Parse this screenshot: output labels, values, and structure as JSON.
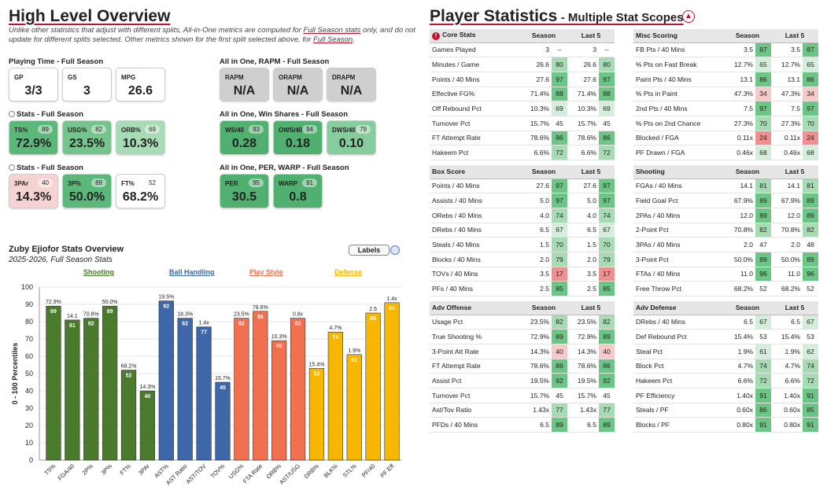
{
  "left": {
    "title": "High Level Overview",
    "note_parts": [
      "Unlike other statistics that adjust with different splits, All-in-One metrics are computed for ",
      "Full Season stats",
      " only, and do not update for different splits selected. Other metrics shown for the first split selected above, for ",
      "Full Season",
      "."
    ],
    "playing_time": {
      "title": "Playing Time - Full Season",
      "cards": [
        {
          "label": "GP",
          "value": "3/3"
        },
        {
          "label": "GS",
          "value": "3"
        },
        {
          "label": "MPG",
          "value": "26.6"
        }
      ]
    },
    "stats1": {
      "title": "Stats - Full Season",
      "cards": [
        {
          "label": "TS%",
          "value": "72.9%",
          "pct": "89",
          "color": "#5cb87a"
        },
        {
          "label": "USG%",
          "value": "23.5%",
          "pct": "82",
          "color": "#74c48c"
        },
        {
          "label": "ORB%",
          "value": "10.3%",
          "pct": "69",
          "color": "#a8dcb6"
        }
      ]
    },
    "stats2": {
      "title": "Stats - Full Season",
      "cards": [
        {
          "label": "3PAr",
          "value": "14.3%",
          "pct": "40",
          "color": "#f6d3d3"
        },
        {
          "label": "3P%",
          "value": "50.0%",
          "pct": "89",
          "color": "#5cb87a"
        },
        {
          "label": "FT%",
          "value": "68.2%",
          "pct": "52",
          "color": "#ffffff"
        }
      ]
    },
    "rapm": {
      "title": "All in One, RAPM - Full Season",
      "cards": [
        {
          "label": "RAPM",
          "value": "N/A"
        },
        {
          "label": "ORAPM",
          "value": "N/A"
        },
        {
          "label": "DRAPM",
          "value": "N/A"
        }
      ]
    },
    "ws": {
      "title": "All in One, Win Shares - Full Season",
      "cards": [
        {
          "label": "WS/40",
          "value": "0.28",
          "pct": "93",
          "color": "#4fb06f"
        },
        {
          "label": "OWS/40",
          "value": "0.18",
          "pct": "94",
          "color": "#4fb06f"
        },
        {
          "label": "DWS/40",
          "value": "0.10",
          "pct": "79",
          "color": "#86cc9c"
        }
      ]
    },
    "per": {
      "title": "All in One, PER, WARP - Full Season",
      "cards": [
        {
          "label": "PER",
          "value": "30.5",
          "pct": "95",
          "color": "#4fb06f"
        },
        {
          "label": "WARP",
          "value": "0.8",
          "pct": "91",
          "color": "#4fb06f"
        }
      ]
    }
  },
  "chart": {
    "title": "Zuby Ejiofor Stats Overview",
    "subtitle": "2025-2026, Full Season Stats",
    "labels_toggle": "Labels",
    "groups": [
      {
        "name": "Shooting",
        "color": "#4a7a2c"
      },
      {
        "name": "Ball Handling",
        "color": "#3d67a8"
      },
      {
        "name": "Play Style",
        "color": "#f07050"
      },
      {
        "name": "Defense",
        "color": "#f7b600"
      }
    ]
  },
  "chart_data": {
    "type": "bar",
    "ylabel": "0 - 100 Percentiles",
    "ylim": [
      0,
      100
    ],
    "yticks": [
      0,
      10,
      20,
      30,
      40,
      50,
      60,
      70,
      80,
      90,
      100
    ],
    "categories": [
      "TS%",
      "FGA/40",
      "2P%",
      "3P%",
      "FT%",
      "3PAr",
      "AST%",
      "AST Ratio",
      "AST/TOV",
      "TOV%",
      "USG%",
      "FTA Rate",
      "ORB%",
      "AST/USG",
      "DRB%",
      "BLK%",
      "STL%",
      "PF/40",
      "PF Eff"
    ],
    "values": [
      89,
      81,
      82,
      89,
      52,
      40,
      92,
      82,
      77,
      45,
      82,
      86,
      69,
      82,
      53,
      74,
      61,
      85,
      91
    ],
    "stat_labels": [
      "72.9%",
      "14.1",
      "70.8%",
      "50.0%",
      "68.2%",
      "14.3%",
      "19.5%",
      "18.3%",
      "1.4x",
      "15.7%",
      "23.5%",
      "78.6%",
      "10.3%",
      "0.8x",
      "15.4%",
      "4.7%",
      "1.9%",
      "2.5",
      "1.4x"
    ],
    "group_index": [
      0,
      0,
      0,
      0,
      0,
      0,
      1,
      1,
      1,
      1,
      2,
      2,
      2,
      2,
      3,
      3,
      3,
      3,
      3
    ]
  },
  "right": {
    "title": "Player Statistics",
    "subtitle": "- Multiple Stat Scopes",
    "tables": [
      {
        "title": "Core Stats",
        "icon": true,
        "h1": "Season",
        "h2": "Last 5",
        "rows": [
          [
            "Games Played",
            "3",
            "--",
            "3",
            "--"
          ],
          [
            "Minutes / Game",
            "26.6",
            "80",
            "26.6",
            "80"
          ],
          [
            "Points / 40 Mins",
            "27.6",
            "97",
            "27.6",
            "97"
          ],
          [
            "Effective FG%",
            "71.4%",
            "88",
            "71.4%",
            "88"
          ],
          [
            "Off Rebound Pct",
            "10.3%",
            "69",
            "10.3%",
            "69"
          ],
          [
            "Turnover Pct",
            "15.7%",
            "45",
            "15.7%",
            "45"
          ],
          [
            "FT Attempt Rate",
            "78.6%",
            "86",
            "78.6%",
            "86"
          ],
          [
            "Hakeem Pct",
            "6.6%",
            "72",
            "6.6%",
            "72"
          ]
        ]
      },
      {
        "title": "Misc Scoring",
        "h1": "Season",
        "h2": "Last 5",
        "rows": [
          [
            "FB Pts / 40 Mins",
            "3.5",
            "87",
            "3.5",
            "87"
          ],
          [
            "% Pts on Fast Break",
            "12.7%",
            "65",
            "12.7%",
            "65"
          ],
          [
            "Paint Pts / 40 Mins",
            "13.1",
            "86",
            "13.1",
            "86"
          ],
          [
            "% Pts in Paint",
            "47.3%",
            "34",
            "47.3%",
            "34"
          ],
          [
            "2nd Pts / 40 Mins",
            "7.5",
            "97",
            "7.5",
            "97"
          ],
          [
            "% Pts on 2nd Chance",
            "27.3%",
            "70",
            "27.3%",
            "70"
          ],
          [
            "Blocked / FGA",
            "0.11x",
            "24",
            "0.11x",
            "24"
          ],
          [
            "PF Drawn / FGA",
            "0.46x",
            "68",
            "0.46x",
            "68"
          ]
        ]
      },
      {
        "title": "Box Score",
        "h1": "Season",
        "h2": "Last 5",
        "rows": [
          [
            "Points / 40 Mins",
            "27.6",
            "97",
            "27.6",
            "97"
          ],
          [
            "Assists / 40 Mins",
            "5.0",
            "97",
            "5.0",
            "97"
          ],
          [
            "ORebs / 40 Mins",
            "4.0",
            "74",
            "4.0",
            "74"
          ],
          [
            "DRebs / 40 Mins",
            "6.5",
            "67",
            "6.5",
            "67"
          ],
          [
            "Steals / 40 Mins",
            "1.5",
            "70",
            "1.5",
            "70"
          ],
          [
            "Blocks / 40 Mins",
            "2.0",
            "79",
            "2.0",
            "79"
          ],
          [
            "TOVs / 40 Mins",
            "3.5",
            "17",
            "3.5",
            "17"
          ],
          [
            "PFs / 40 Mins",
            "2.5",
            "85",
            "2.5",
            "85"
          ]
        ]
      },
      {
        "title": "Shooting",
        "h1": "Season",
        "h2": "Last 5",
        "rows": [
          [
            "FGAs / 40 Mins",
            "14.1",
            "81",
            "14.1",
            "81"
          ],
          [
            "Field Goal Pct",
            "67.9%",
            "89",
            "67.9%",
            "89"
          ],
          [
            "2PAs / 40 Mins",
            "12.0",
            "89",
            "12.0",
            "89"
          ],
          [
            "2-Point Pct",
            "70.8%",
            "82",
            "70.8%",
            "82"
          ],
          [
            "3PAs / 40 Mins",
            "2.0",
            "47",
            "2.0",
            "48"
          ],
          [
            "3-Point Pct",
            "50.0%",
            "89",
            "50.0%",
            "89"
          ],
          [
            "FTAs / 40 Mins",
            "11.0",
            "96",
            "11.0",
            "96"
          ],
          [
            "Free Throw Pct",
            "68.2%",
            "52",
            "68.2%",
            "52"
          ]
        ]
      },
      {
        "title": "Adv Offense",
        "h1": "Season",
        "h2": "Last 5",
        "rows": [
          [
            "Usage Pct",
            "23.5%",
            "82",
            "23.5%",
            "82"
          ],
          [
            "True Shooting %",
            "72.9%",
            "89",
            "72.9%",
            "89"
          ],
          [
            "3-Point Att Rate",
            "14.3%",
            "40",
            "14.3%",
            "40"
          ],
          [
            "FT Attempt Rate",
            "78.6%",
            "86",
            "78.6%",
            "86"
          ],
          [
            "Assist Pct",
            "19.5%",
            "92",
            "19.5%",
            "92"
          ],
          [
            "Turnover Pct",
            "15.7%",
            "45",
            "15.7%",
            "45"
          ],
          [
            "Ast/Tov Ratio",
            "1.43x",
            "77",
            "1.43x",
            "77"
          ],
          [
            "PFDs / 40 Mins",
            "6.5",
            "89",
            "6.5",
            "89"
          ]
        ]
      },
      {
        "title": "Adv Defense",
        "h1": "Season",
        "h2": "Last 5",
        "rows": [
          [
            "DRebs / 40 Mins",
            "6.5",
            "67",
            "6.5",
            "67"
          ],
          [
            "Def Rebound Pct",
            "15.4%",
            "53",
            "15.4%",
            "53"
          ],
          [
            "Steal Pct",
            "1.9%",
            "61",
            "1.9%",
            "62"
          ],
          [
            "Block Pct",
            "4.7%",
            "74",
            "4.7%",
            "74"
          ],
          [
            "Hakeem Pct",
            "6.6%",
            "72",
            "6.6%",
            "72"
          ],
          [
            "PF Efficiency",
            "1.40x",
            "91",
            "1.40x",
            "91"
          ],
          [
            "Steals / PF",
            "0.60x",
            "86",
            "0.60x",
            "85"
          ],
          [
            "Blocks / PF",
            "0.80x",
            "91",
            "0.80x",
            "91"
          ]
        ]
      }
    ]
  }
}
